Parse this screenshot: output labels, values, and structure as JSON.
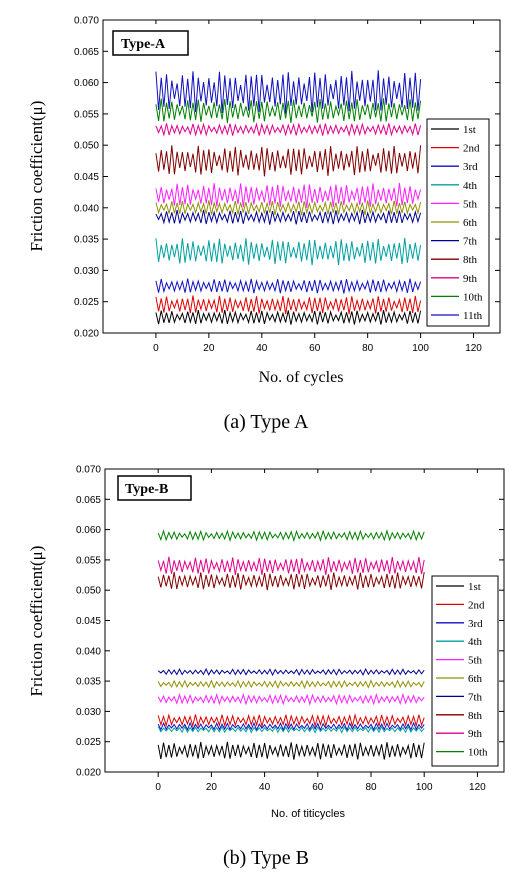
{
  "chart_data": [
    {
      "type": "line",
      "panel_label": "Type-A",
      "caption": "(a) Type A",
      "xlabel": "No. of cycles",
      "ylabel": "Friction coefficient(μ)",
      "xlim": [
        -20,
        130
      ],
      "ylim": [
        0.02,
        0.07
      ],
      "xticks": [
        "0",
        "20",
        "40",
        "60",
        "80",
        "100",
        "120"
      ],
      "yticks": [
        "0.020",
        "0.025",
        "0.030",
        "0.035",
        "0.040",
        "0.045",
        "0.050",
        "0.055",
        "0.060",
        "0.065",
        "0.070"
      ],
      "legend_position": "right",
      "x_range": [
        0,
        100
      ],
      "series": [
        {
          "name": "1st",
          "color": "#000000",
          "mean": 0.0225,
          "amplitude": 0.0012
        },
        {
          "name": "2nd",
          "color": "#e00000",
          "mean": 0.0245,
          "amplitude": 0.0015
        },
        {
          "name": "3rd",
          "color": "#1010c0",
          "mean": 0.0275,
          "amplitude": 0.0012
        },
        {
          "name": "4th",
          "color": "#00a0a0",
          "mean": 0.033,
          "amplitude": 0.0022
        },
        {
          "name": "5th",
          "color": "#ff20ff",
          "mean": 0.042,
          "amplitude": 0.002
        },
        {
          "name": "6th",
          "color": "#909000",
          "mean": 0.04,
          "amplitude": 0.0012
        },
        {
          "name": "7th",
          "color": "#000090",
          "mean": 0.0385,
          "amplitude": 0.0012
        },
        {
          "name": "8th",
          "color": "#800000",
          "mean": 0.0475,
          "amplitude": 0.0025
        },
        {
          "name": "9th",
          "color": "#e0008a",
          "mean": 0.0525,
          "amplitude": 0.001
        },
        {
          "name": "10th",
          "color": "#008000",
          "mean": 0.0555,
          "amplitude": 0.002
        },
        {
          "name": "11th",
          "color": "#1010c0",
          "mean": 0.0585,
          "amplitude": 0.0035
        }
      ]
    },
    {
      "type": "line",
      "panel_label": "Type-B",
      "caption": "(b) Type B",
      "xlabel": "No. of titicycles",
      "ylabel": "Friction coefficient(μ)",
      "xlim": [
        -20,
        130
      ],
      "ylim": [
        0.02,
        0.07
      ],
      "xticks": [
        "0",
        "20",
        "40",
        "60",
        "80",
        "100",
        "120"
      ],
      "yticks": [
        "0.020",
        "0.025",
        "0.030",
        "0.035",
        "0.040",
        "0.045",
        "0.050",
        "0.055",
        "0.060",
        "0.065",
        "0.070"
      ],
      "legend_position": "right",
      "x_range": [
        0,
        100
      ],
      "series": [
        {
          "name": "1st",
          "color": "#000000",
          "mean": 0.0235,
          "amplitude": 0.0015
        },
        {
          "name": "2nd",
          "color": "#e00000",
          "mean": 0.0285,
          "amplitude": 0.001
        },
        {
          "name": "3rd",
          "color": "#1010c0",
          "mean": 0.0275,
          "amplitude": 0.0006
        },
        {
          "name": "4th",
          "color": "#00a0a0",
          "mean": 0.027,
          "amplitude": 0.0005
        },
        {
          "name": "5th",
          "color": "#ff20ff",
          "mean": 0.032,
          "amplitude": 0.0008
        },
        {
          "name": "6th",
          "color": "#909000",
          "mean": 0.0345,
          "amplitude": 0.0006
        },
        {
          "name": "7th",
          "color": "#000090",
          "mean": 0.0365,
          "amplitude": 0.0005
        },
        {
          "name": "8th",
          "color": "#800000",
          "mean": 0.0515,
          "amplitude": 0.0015
        },
        {
          "name": "9th",
          "color": "#e0008a",
          "mean": 0.054,
          "amplitude": 0.0015
        },
        {
          "name": "10th",
          "color": "#008000",
          "mean": 0.059,
          "amplitude": 0.0008
        }
      ]
    }
  ]
}
